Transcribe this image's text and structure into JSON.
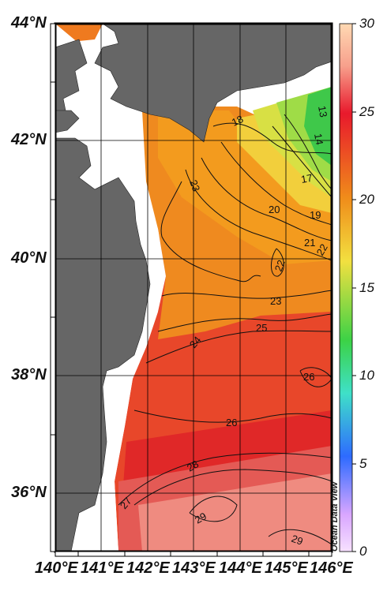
{
  "map": {
    "lat_labels": [
      "44°N",
      "42°N",
      "40°N",
      "38°N",
      "36°N"
    ],
    "lon_labels": [
      "140°E",
      "141°E",
      "142°E",
      "143°E",
      "144°E",
      "145°E",
      "146°E"
    ],
    "contour_labels": [
      "18",
      "14",
      "13",
      "17",
      "19",
      "20",
      "21",
      "22",
      "23",
      "22",
      "23",
      "24",
      "25",
      "26",
      "26",
      "27",
      "28",
      "29",
      "29"
    ],
    "credit": "Ocean Data View",
    "colors": {
      "land": "#666666",
      "no_data": "#ffffff",
      "frame": "#000000"
    }
  },
  "colorbar": {
    "ticks": [
      "30",
      "25",
      "20",
      "15",
      "10",
      "5",
      "0"
    ],
    "stops": [
      "#ffd9b3",
      "#e8192c",
      "#f08c1a",
      "#f2e040",
      "#3cd246",
      "#3fe0c8",
      "#2e6bff",
      "#d9a6ff",
      "#f7e1ff"
    ]
  }
}
